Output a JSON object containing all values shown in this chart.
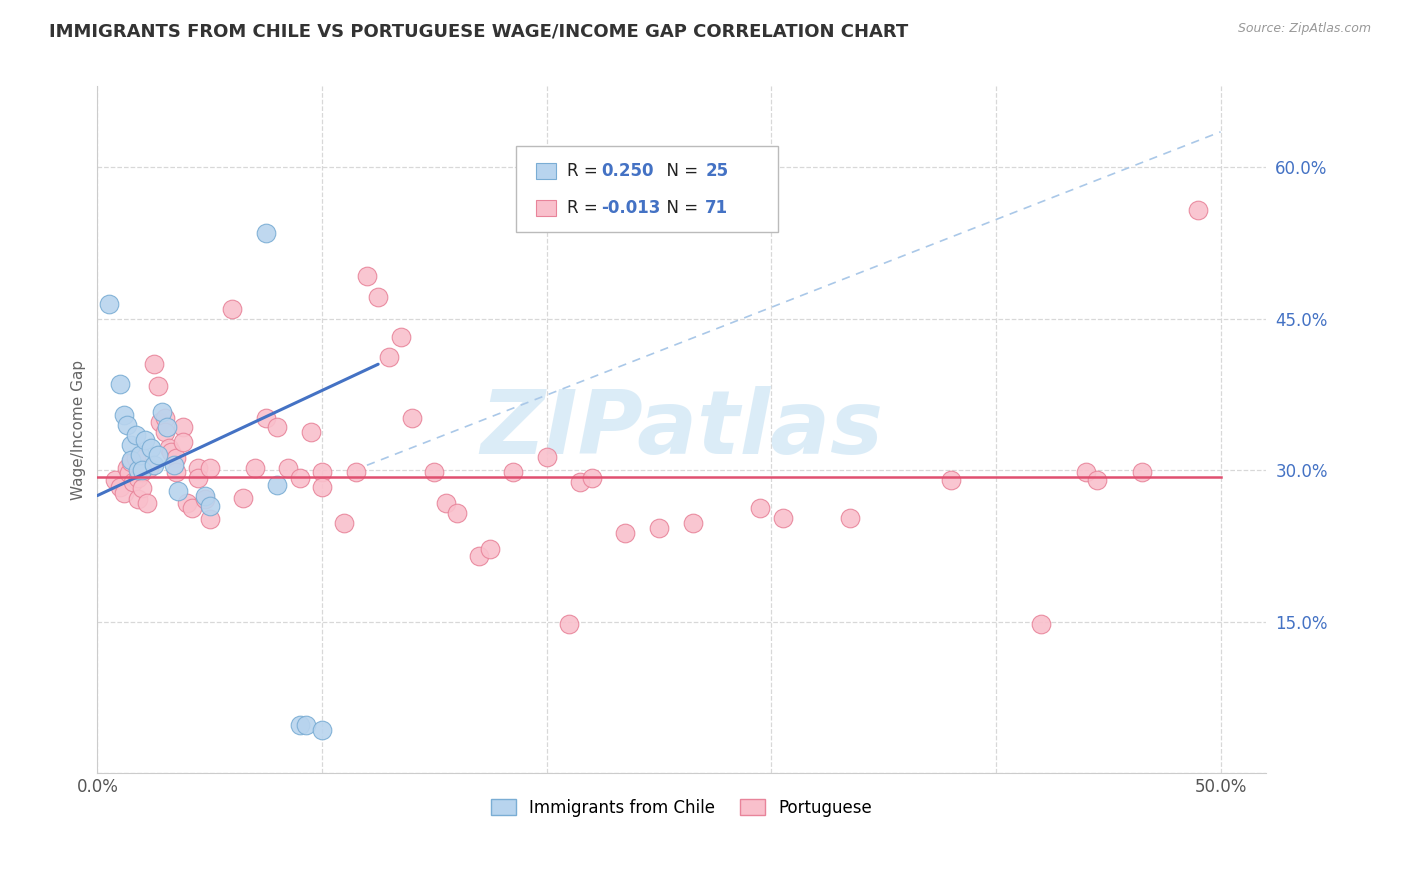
{
  "title": "IMMIGRANTS FROM CHILE VS PORTUGUESE WAGE/INCOME GAP CORRELATION CHART",
  "source": "Source: ZipAtlas.com",
  "ylabel": "Wage/Income Gap",
  "xlim": [
    0.0,
    0.52
  ],
  "ylim": [
    0.0,
    0.68
  ],
  "xticks": [
    0.0,
    0.1,
    0.2,
    0.3,
    0.4,
    0.5
  ],
  "yticks": [
    0.0,
    0.15,
    0.3,
    0.45,
    0.6
  ],
  "ytick_labels_right": [
    "",
    "15.0%",
    "30.0%",
    "45.0%",
    "60.0%"
  ],
  "grid_color": "#d8d8d8",
  "background_color": "#ffffff",
  "chile_color": "#b8d4ee",
  "chile_edge_color": "#7aadd4",
  "portuguese_color": "#f9c0cc",
  "portuguese_edge_color": "#e8849a",
  "chile_R": 0.25,
  "chile_N": 25,
  "portuguese_R": -0.013,
  "portuguese_N": 71,
  "chile_trend_x": [
    0.0,
    0.125
  ],
  "chile_trend_y": [
    0.275,
    0.405
  ],
  "portuguese_trend_y": 0.293,
  "dash_line_x": [
    0.12,
    0.5
  ],
  "dash_line_y": [
    0.305,
    0.635
  ],
  "chile_points": [
    [
      0.005,
      0.465
    ],
    [
      0.01,
      0.385
    ],
    [
      0.012,
      0.355
    ],
    [
      0.013,
      0.345
    ],
    [
      0.015,
      0.325
    ],
    [
      0.015,
      0.31
    ],
    [
      0.017,
      0.335
    ],
    [
      0.018,
      0.3
    ],
    [
      0.019,
      0.315
    ],
    [
      0.02,
      0.3
    ],
    [
      0.021,
      0.33
    ],
    [
      0.024,
      0.322
    ],
    [
      0.025,
      0.305
    ],
    [
      0.027,
      0.315
    ],
    [
      0.029,
      0.358
    ],
    [
      0.031,
      0.343
    ],
    [
      0.034,
      0.305
    ],
    [
      0.036,
      0.28
    ],
    [
      0.048,
      0.275
    ],
    [
      0.05,
      0.265
    ],
    [
      0.075,
      0.535
    ],
    [
      0.08,
      0.285
    ],
    [
      0.09,
      0.048
    ],
    [
      0.093,
      0.048
    ],
    [
      0.1,
      0.043
    ]
  ],
  "portuguese_points": [
    [
      0.008,
      0.29
    ],
    [
      0.01,
      0.283
    ],
    [
      0.012,
      0.278
    ],
    [
      0.013,
      0.302
    ],
    [
      0.014,
      0.297
    ],
    [
      0.015,
      0.308
    ],
    [
      0.016,
      0.288
    ],
    [
      0.017,
      0.312
    ],
    [
      0.018,
      0.292
    ],
    [
      0.018,
      0.272
    ],
    [
      0.02,
      0.298
    ],
    [
      0.02,
      0.282
    ],
    [
      0.022,
      0.268
    ],
    [
      0.023,
      0.302
    ],
    [
      0.025,
      0.405
    ],
    [
      0.027,
      0.383
    ],
    [
      0.028,
      0.348
    ],
    [
      0.03,
      0.352
    ],
    [
      0.03,
      0.338
    ],
    [
      0.032,
      0.322
    ],
    [
      0.033,
      0.318
    ],
    [
      0.035,
      0.312
    ],
    [
      0.035,
      0.298
    ],
    [
      0.038,
      0.343
    ],
    [
      0.038,
      0.328
    ],
    [
      0.04,
      0.268
    ],
    [
      0.042,
      0.263
    ],
    [
      0.045,
      0.302
    ],
    [
      0.045,
      0.292
    ],
    [
      0.048,
      0.272
    ],
    [
      0.05,
      0.302
    ],
    [
      0.05,
      0.252
    ],
    [
      0.06,
      0.46
    ],
    [
      0.065,
      0.273
    ],
    [
      0.07,
      0.302
    ],
    [
      0.075,
      0.352
    ],
    [
      0.08,
      0.343
    ],
    [
      0.085,
      0.302
    ],
    [
      0.09,
      0.292
    ],
    [
      0.095,
      0.338
    ],
    [
      0.1,
      0.298
    ],
    [
      0.1,
      0.283
    ],
    [
      0.11,
      0.248
    ],
    [
      0.115,
      0.298
    ],
    [
      0.12,
      0.492
    ],
    [
      0.125,
      0.472
    ],
    [
      0.13,
      0.412
    ],
    [
      0.135,
      0.432
    ],
    [
      0.14,
      0.352
    ],
    [
      0.15,
      0.298
    ],
    [
      0.155,
      0.268
    ],
    [
      0.16,
      0.258
    ],
    [
      0.17,
      0.215
    ],
    [
      0.175,
      0.222
    ],
    [
      0.185,
      0.298
    ],
    [
      0.2,
      0.313
    ],
    [
      0.21,
      0.148
    ],
    [
      0.215,
      0.288
    ],
    [
      0.22,
      0.292
    ],
    [
      0.235,
      0.238
    ],
    [
      0.25,
      0.243
    ],
    [
      0.265,
      0.248
    ],
    [
      0.295,
      0.263
    ],
    [
      0.305,
      0.253
    ],
    [
      0.335,
      0.253
    ],
    [
      0.38,
      0.29
    ],
    [
      0.42,
      0.148
    ],
    [
      0.44,
      0.298
    ],
    [
      0.445,
      0.29
    ],
    [
      0.465,
      0.298
    ],
    [
      0.49,
      0.558
    ]
  ],
  "legend_label_chile": "Immigrants from Chile",
  "legend_label_portuguese": "Portuguese",
  "watermark_text": "ZIPatlas",
  "watermark_color": "#cde5f5"
}
